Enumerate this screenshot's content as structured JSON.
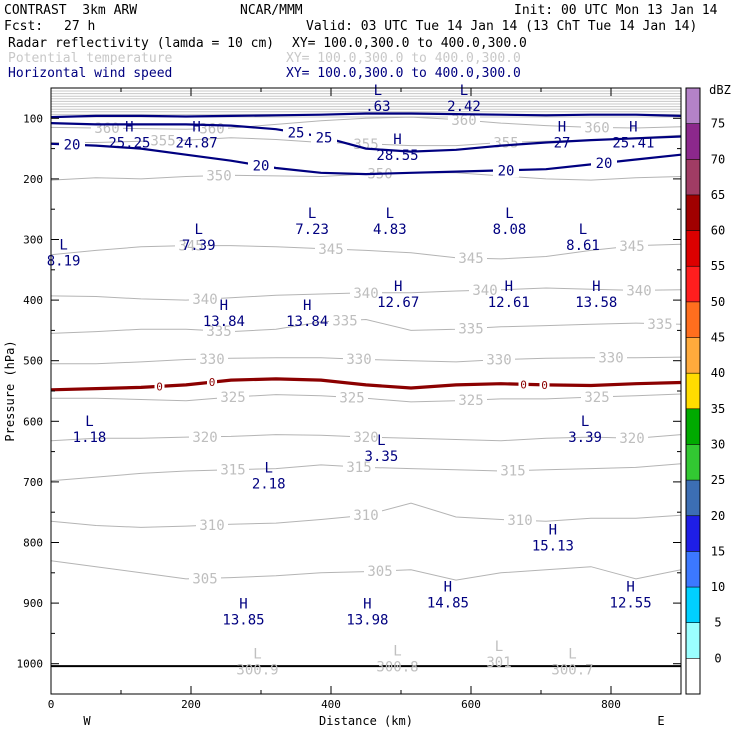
{
  "header": {
    "model": "CONTRAST  3km ARW",
    "org": "NCAR/MMM",
    "init": "Init: 00 UTC Mon 13 Jan 14",
    "fcst_label": "Fcst:",
    "fcst_value": "27 h",
    "valid": "Valid: 03 UTC Tue 14 Jan 14 (13 ChT Tue 14 Jan 14)",
    "fields": [
      {
        "name": "Radar reflectivity (lamda = 10 cm)",
        "xy": "XY= 100.0,300.0 to 400.0,300.0",
        "color": "#000000"
      },
      {
        "name": "Potential temperature",
        "xy": "XY= 100.0,300.0 to 400.0,300.0",
        "color": "#c8c8c8"
      },
      {
        "name": "Horizontal wind speed",
        "xy": "XY= 100.0,300.0 to 400.0,300.0",
        "color": "#000080"
      }
    ]
  },
  "chart_data": {
    "type": "contour-cross-section",
    "xlabel": "Distance (km)",
    "ylabel": "Pressure (hPa)",
    "xlim": [
      0,
      900
    ],
    "ylim": [
      1050,
      50
    ],
    "x_ticks": [
      0,
      200,
      400,
      600,
      800
    ],
    "x_tick_labels": [
      "0",
      "200",
      "400",
      "600",
      "800"
    ],
    "y_ticks": [
      100,
      200,
      300,
      400,
      500,
      600,
      700,
      800,
      900,
      1000
    ],
    "y_tick_labels": [
      "100",
      "200",
      "300",
      "400",
      "500",
      "600",
      "700",
      "800",
      "900",
      "1000"
    ],
    "direction_left": "W",
    "direction_right": "E",
    "theta_lines": [
      {
        "label": "305",
        "p": [
          830,
          840,
          850,
          860,
          858,
          855,
          850,
          848,
          845,
          862,
          850,
          845,
          840,
          860,
          845
        ],
        "labels_at": [
          220,
          470
        ]
      },
      {
        "label": "310",
        "p": [
          765,
          772,
          775,
          773,
          770,
          768,
          762,
          755,
          735,
          758,
          762,
          765,
          760,
          760,
          755
        ],
        "labels_at": [
          230,
          450,
          670
        ]
      },
      {
        "label": "315",
        "p": [
          698,
          692,
          686,
          682,
          680,
          678,
          672,
          676,
          678,
          680,
          682,
          680,
          678,
          676,
          670
        ],
        "labels_at": [
          260,
          440,
          660
        ]
      },
      {
        "label": "320",
        "p": [
          632,
          628,
          628,
          626,
          625,
          622,
          623,
          626,
          628,
          630,
          632,
          628,
          626,
          628,
          622
        ],
        "labels_at": [
          220,
          450,
          830
        ]
      },
      {
        "label": "325",
        "p": [
          562,
          562,
          564,
          566,
          560,
          556,
          558,
          562,
          568,
          566,
          563,
          563,
          560,
          558,
          555
        ],
        "labels_at": [
          260,
          430,
          600,
          780
        ]
      },
      {
        "label": "330",
        "p": [
          505,
          505,
          502,
          498,
          496,
          495,
          495,
          498,
          500,
          502,
          498,
          496,
          495,
          495,
          494
        ],
        "labels_at": [
          230,
          440,
          640,
          800
        ]
      },
      {
        "label": "335",
        "p": [
          455,
          452,
          448,
          448,
          452,
          448,
          436,
          432,
          450,
          448,
          444,
          442,
          440,
          438,
          440
        ],
        "labels_at": [
          240,
          420,
          600,
          870
        ]
      },
      {
        "label": "340",
        "p": [
          393,
          394,
          398,
          400,
          396,
          392,
          390,
          388,
          388,
          385,
          383,
          380,
          382,
          384,
          383
        ],
        "labels_at": [
          220,
          450,
          620,
          840
        ]
      },
      {
        "label": "345",
        "p": [
          325,
          318,
          312,
          310,
          310,
          312,
          315,
          318,
          322,
          330,
          332,
          328,
          318,
          310,
          308
        ],
        "labels_at": [
          200,
          400,
          600,
          830
        ]
      },
      {
        "label": "350",
        "p": [
          202,
          198,
          200,
          196,
          194,
          195,
          196,
          192,
          190,
          190,
          195,
          200,
          202,
          198,
          196
        ],
        "labels_at": [
          240,
          470
        ]
      },
      {
        "label": "355",
        "p": [
          140,
          140,
          138,
          136,
          132,
          135,
          140,
          142,
          145,
          145,
          140,
          138,
          136,
          132,
          128
        ],
        "labels_at": [
          160,
          450,
          650
        ]
      },
      {
        "label": "360",
        "p": [
          115,
          116,
          117,
          118,
          116,
          110,
          104,
          100,
          98,
          102,
          108,
          112,
          115,
          116,
          114
        ],
        "labels_at": [
          80,
          230,
          590,
          780
        ]
      }
    ],
    "wind_isotachs": [
      {
        "label": "20",
        "p": [
          142,
          145,
          150,
          160,
          170,
          182,
          190,
          192,
          190,
          188,
          186,
          184,
          176,
          168,
          160
        ],
        "labels_at": [
          30,
          300,
          650,
          790
        ]
      },
      {
        "label": "25",
        "p": [
          108,
          110,
          110,
          110,
          112,
          118,
          130,
          150,
          155,
          152,
          145,
          140,
          136,
          133,
          130
        ],
        "labels_at": [
          350,
          390
        ]
      },
      {
        "label": "20",
        "p": [
          98,
          96,
          96,
          97,
          96,
          95,
          94,
          92,
          92,
          93,
          94,
          95,
          94,
          94,
          96
        ],
        "labels_at": []
      }
    ],
    "reflectivity_zero_line": {
      "label": "0",
      "p": [
        548,
        546,
        544,
        540,
        532,
        530,
        532,
        540,
        545,
        540,
        538,
        540,
        541,
        538,
        536
      ],
      "labels_at": [
        155,
        230,
        675,
        705
      ]
    },
    "extrema": [
      {
        "kind": "L",
        "value": ".63",
        "x": 467,
        "p": 65
      },
      {
        "kind": "L",
        "value": "2.42",
        "x": 590,
        "p": 65
      },
      {
        "kind": "H",
        "value": "25.25",
        "x": 112,
        "p": 125
      },
      {
        "kind": "H",
        "value": "24.87",
        "x": 208,
        "p": 125
      },
      {
        "kind": "H",
        "value": "28.55",
        "x": 495,
        "p": 146
      },
      {
        "kind": "H",
        "value": "27",
        "x": 730,
        "p": 125
      },
      {
        "kind": "H",
        "value": "25.41",
        "x": 832,
        "p": 125
      },
      {
        "kind": "L",
        "value": "7.23",
        "x": 373,
        "p": 268
      },
      {
        "kind": "L",
        "value": "4.83",
        "x": 484,
        "p": 268
      },
      {
        "kind": "L",
        "value": "8.08",
        "x": 655,
        "p": 268
      },
      {
        "kind": "L",
        "value": "7.39",
        "x": 211,
        "p": 294
      },
      {
        "kind": "L",
        "value": "8.61",
        "x": 760,
        "p": 294
      },
      {
        "kind": "L",
        "value": "8.19",
        "x": 18,
        "p": 320
      },
      {
        "kind": "H",
        "value": "12.67",
        "x": 496,
        "p": 388
      },
      {
        "kind": "H",
        "value": "12.61",
        "x": 654,
        "p": 388
      },
      {
        "kind": "H",
        "value": "13.58",
        "x": 779,
        "p": 388
      },
      {
        "kind": "H",
        "value": "13.84",
        "x": 247,
        "p": 420
      },
      {
        "kind": "H",
        "value": "13.84",
        "x": 366,
        "p": 420
      },
      {
        "kind": "L",
        "value": "1.18",
        "x": 55,
        "p": 611
      },
      {
        "kind": "L",
        "value": "3.39",
        "x": 763,
        "p": 611
      },
      {
        "kind": "L",
        "value": "3.35",
        "x": 472,
        "p": 642
      },
      {
        "kind": "L",
        "value": "2.18",
        "x": 311,
        "p": 688
      },
      {
        "kind": "H",
        "value": "15.13",
        "x": 717,
        "p": 790
      },
      {
        "kind": "H",
        "value": "14.85",
        "x": 567,
        "p": 884
      },
      {
        "kind": "H",
        "value": "12.55",
        "x": 828,
        "p": 884
      },
      {
        "kind": "H",
        "value": "13.85",
        "x": 275,
        "p": 912
      },
      {
        "kind": "H",
        "value": "13.98",
        "x": 452,
        "p": 912
      },
      {
        "kind": "L",
        "value": "300.9",
        "x": 295,
        "p": 995
      },
      {
        "kind": "L",
        "value": "300.8",
        "x": 495,
        "p": 990
      },
      {
        "kind": "L",
        "value": "301",
        "x": 640,
        "p": 982
      },
      {
        "kind": "L",
        "value": "300.7",
        "x": 745,
        "p": 995
      }
    ],
    "colorbar": {
      "units": "dBZ",
      "levels": [
        "0",
        "5",
        "10",
        "15",
        "20",
        "25",
        "30",
        "35",
        "40",
        "45",
        "50",
        "55",
        "60",
        "65",
        "70",
        "75"
      ],
      "colors": [
        "#ffffff",
        "#9bffff",
        "#00d0ff",
        "#3c78ff",
        "#1e1ee6",
        "#3c6eb4",
        "#32c832",
        "#00aa00",
        "#ffdc00",
        "#ffaa3c",
        "#ff6e1e",
        "#ff1e1e",
        "#dc0000",
        "#a00000",
        "#a03c64",
        "#8c288c",
        "#b482c8"
      ]
    }
  }
}
